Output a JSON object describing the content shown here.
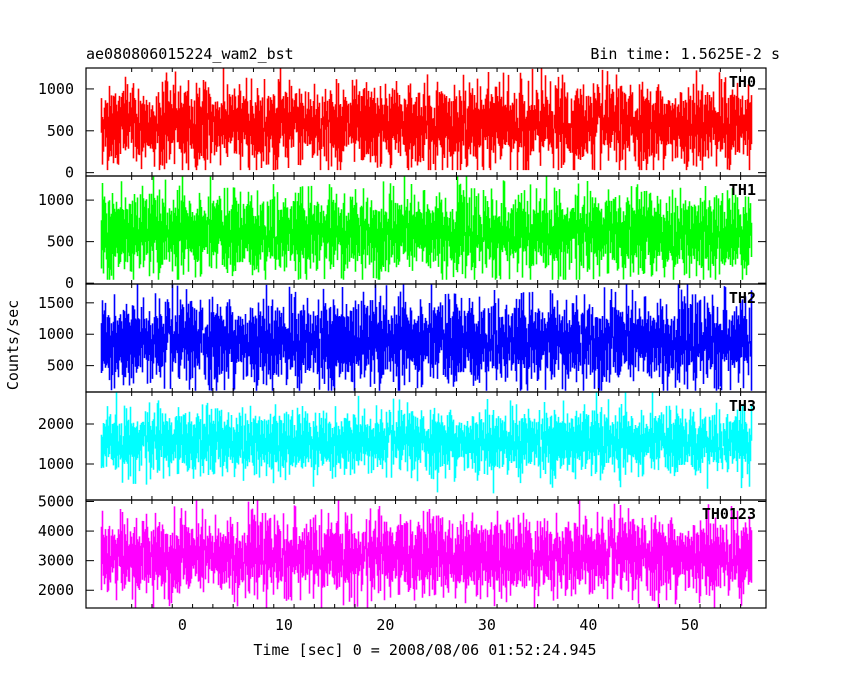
{
  "chart_data": {
    "type": "line",
    "title_left": "ae080806015224_wam2_bst",
    "title_right": "Bin time: 1.5625E-2 s",
    "xlabel": "Time [sec] 0 = 2008/08/06 01:52:24.945",
    "ylabel": "Counts/sec",
    "xlim": [
      -9.5,
      57.5
    ],
    "x_ticks": [
      0,
      10,
      20,
      30,
      40,
      50
    ],
    "x_start": -8,
    "x_end": 56,
    "panels": [
      {
        "name": "TH0",
        "color": "#ff0000",
        "ylim": [
          -40,
          1250
        ],
        "y_ticks": [
          0,
          500,
          1000
        ],
        "mean": 570,
        "spread": 230,
        "min_clip": 30,
        "max_clip": 1250
      },
      {
        "name": "TH1",
        "color": "#00ff00",
        "ylim": [
          -10,
          1290
        ],
        "y_ticks": [
          0,
          500,
          1000
        ],
        "mean": 600,
        "spread": 230,
        "min_clip": 40,
        "max_clip": 1290
      },
      {
        "name": "TH2",
        "color": "#0000ff",
        "ylim": [
          80,
          1800
        ],
        "y_ticks": [
          500,
          1000,
          1500
        ],
        "mean": 880,
        "spread": 320,
        "min_clip": 100,
        "max_clip": 1800
      },
      {
        "name": "TH3",
        "color": "#00ffff",
        "ylim": [
          100,
          2800
        ],
        "y_ticks": [
          1000,
          2000
        ],
        "mean": 1550,
        "spread": 380,
        "min_clip": 200,
        "max_clip": 2800
      },
      {
        "name": "TH0123",
        "color": "#ff00ff",
        "ylim": [
          1400,
          5050
        ],
        "y_ticks": [
          2000,
          3000,
          4000,
          5000
        ],
        "mean": 3150,
        "spread": 620,
        "min_clip": 1400,
        "max_clip": 5050
      }
    ]
  }
}
